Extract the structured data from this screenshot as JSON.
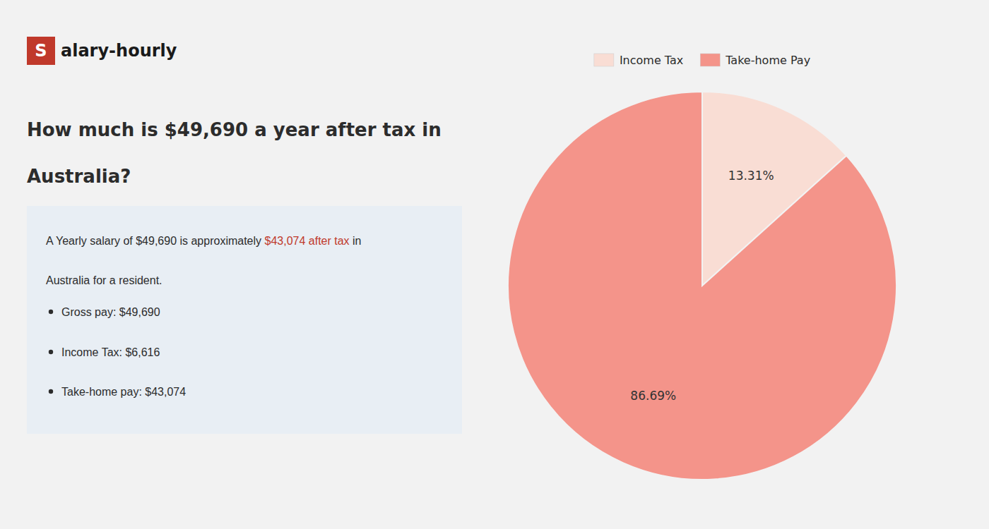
{
  "chart_data": {
    "type": "pie",
    "title": [
      "How much is $49,690 a year after tax in",
      "Australia?"
    ],
    "categories": [
      "Income Tax",
      "Take-home Pay"
    ],
    "values": [
      13.31,
      86.69
    ],
    "value_labels": [
      "13.31%",
      "86.69%"
    ],
    "colors": [
      "#f9ddd4",
      "#f4948a"
    ],
    "data_labels": true,
    "legend": "top",
    "annotations": [
      [
        {
          "text": "S",
          "color": "#c0392b"
        },
        {
          "text": "alary-hourly"
        }
      ],
      [
        {
          "text": "A Yearly salary of $49,690 is approximately "
        },
        {
          "text": "$43,074 after tax",
          "color": "#c0392b"
        },
        {
          "text": " in"
        }
      ],
      [
        {
          "text": "Australia for a resident."
        }
      ],
      [
        {
          "text": "Gross pay: $49,690"
        }
      ],
      [
        {
          "text": "Income Tax: $6,616"
        }
      ],
      [
        {
          "text": "Take-home pay: $43,074"
        }
      ]
    ]
  }
}
